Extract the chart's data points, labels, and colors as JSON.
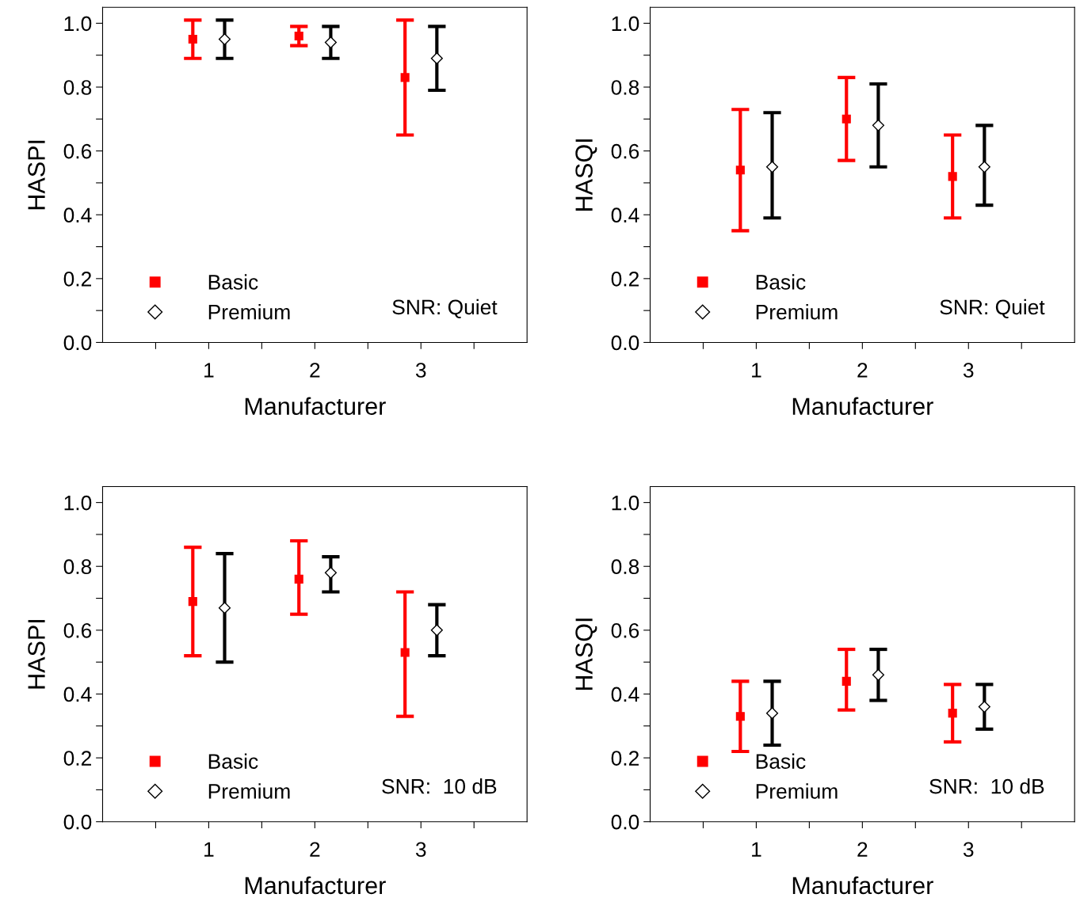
{
  "chart_data": [
    {
      "type": "scatter",
      "xlabel": "Manufacturer",
      "ylabel": "HASPI",
      "xlim": [
        0,
        4
      ],
      "ylim": [
        0,
        1.05
      ],
      "xticks": [
        {
          "value": 0.5,
          "label": null
        },
        1,
        {
          "value": 1.5,
          "label": null
        },
        2,
        {
          "value": 2.5,
          "label": null
        },
        3,
        {
          "value": 3.5,
          "label": null
        }
      ],
      "yticks": [
        {
          "value": 0,
          "label": "0.0"
        },
        {
          "value": 0.1,
          "label": null
        },
        {
          "value": 0.2,
          "label": "0.2"
        },
        {
          "value": 0.3,
          "label": null
        },
        {
          "value": 0.4,
          "label": "0.4"
        },
        {
          "value": 0.5,
          "label": null
        },
        {
          "value": 0.6,
          "label": "0.6"
        },
        {
          "value": 0.7,
          "label": null
        },
        {
          "value": 0.8,
          "label": "0.8"
        },
        {
          "value": 0.9,
          "label": null
        },
        {
          "value": 1.0,
          "label": "1.0"
        }
      ],
      "grid": false,
      "legend": "bottom left",
      "annotations": [
        "SNR: Quiet"
      ],
      "series": [
        {
          "name": "Basic",
          "color": "#ff0000",
          "marker": "square",
          "x": [
            0.85,
            1.85,
            2.85
          ],
          "values": [
            0.95,
            0.96,
            0.83
          ],
          "errors": [
            [
              0.89,
              1.01
            ],
            [
              0.93,
              0.99
            ],
            [
              0.65,
              1.01
            ]
          ]
        },
        {
          "name": "Premium",
          "color": "#000000",
          "marker": "diamond",
          "x": [
            1.15,
            2.15,
            3.15
          ],
          "values": [
            0.95,
            0.94,
            0.89
          ],
          "errors": [
            [
              0.89,
              1.01
            ],
            [
              0.89,
              0.99
            ],
            [
              0.79,
              0.99
            ]
          ]
        }
      ]
    },
    {
      "type": "scatter",
      "xlabel": "Manufacturer",
      "ylabel": "HASQI",
      "xlim": [
        0,
        4
      ],
      "ylim": [
        0,
        1.05
      ],
      "xticks": [
        {
          "value": 0.5,
          "label": null
        },
        1,
        {
          "value": 1.5,
          "label": null
        },
        2,
        {
          "value": 2.5,
          "label": null
        },
        3,
        {
          "value": 3.5,
          "label": null
        }
      ],
      "yticks": [
        {
          "value": 0,
          "label": "0.0"
        },
        {
          "value": 0.1,
          "label": null
        },
        {
          "value": 0.2,
          "label": "0.2"
        },
        {
          "value": 0.3,
          "label": null
        },
        {
          "value": 0.4,
          "label": "0.4"
        },
        {
          "value": 0.5,
          "label": null
        },
        {
          "value": 0.6,
          "label": "0.6"
        },
        {
          "value": 0.7,
          "label": null
        },
        {
          "value": 0.8,
          "label": "0.8"
        },
        {
          "value": 0.9,
          "label": null
        },
        {
          "value": 1.0,
          "label": "1.0"
        }
      ],
      "grid": false,
      "legend": "bottom left",
      "annotations": [
        "SNR: Quiet"
      ],
      "series": [
        {
          "name": "Basic",
          "color": "#ff0000",
          "marker": "square",
          "x": [
            0.85,
            1.85,
            2.85
          ],
          "values": [
            0.54,
            0.7,
            0.52
          ],
          "errors": [
            [
              0.35,
              0.73
            ],
            [
              0.57,
              0.83
            ],
            [
              0.39,
              0.65
            ]
          ]
        },
        {
          "name": "Premium",
          "color": "#000000",
          "marker": "diamond",
          "x": [
            1.15,
            2.15,
            3.15
          ],
          "values": [
            0.55,
            0.68,
            0.55
          ],
          "errors": [
            [
              0.39,
              0.72
            ],
            [
              0.55,
              0.81
            ],
            [
              0.43,
              0.68
            ]
          ]
        }
      ]
    },
    {
      "type": "scatter",
      "xlabel": "Manufacturer",
      "ylabel": "HASPI",
      "xlim": [
        0,
        4
      ],
      "ylim": [
        0,
        1.05
      ],
      "xticks": [
        {
          "value": 0.5,
          "label": null
        },
        1,
        {
          "value": 1.5,
          "label": null
        },
        2,
        {
          "value": 2.5,
          "label": null
        },
        3,
        {
          "value": 3.5,
          "label": null
        }
      ],
      "yticks": [
        {
          "value": 0,
          "label": "0.0"
        },
        {
          "value": 0.1,
          "label": null
        },
        {
          "value": 0.2,
          "label": "0.2"
        },
        {
          "value": 0.3,
          "label": null
        },
        {
          "value": 0.4,
          "label": "0.4"
        },
        {
          "value": 0.5,
          "label": null
        },
        {
          "value": 0.6,
          "label": "0.6"
        },
        {
          "value": 0.7,
          "label": null
        },
        {
          "value": 0.8,
          "label": "0.8"
        },
        {
          "value": 0.9,
          "label": null
        },
        {
          "value": 1.0,
          "label": "1.0"
        }
      ],
      "grid": false,
      "legend": "bottom left",
      "annotations": [
        "SNR:  10 dB"
      ],
      "series": [
        {
          "name": "Basic",
          "color": "#ff0000",
          "marker": "square",
          "x": [
            0.85,
            1.85,
            2.85
          ],
          "values": [
            0.69,
            0.76,
            0.53
          ],
          "errors": [
            [
              0.52,
              0.86
            ],
            [
              0.65,
              0.88
            ],
            [
              0.33,
              0.72
            ]
          ]
        },
        {
          "name": "Premium",
          "color": "#000000",
          "marker": "diamond",
          "x": [
            1.15,
            2.15,
            3.15
          ],
          "values": [
            0.67,
            0.78,
            0.6
          ],
          "errors": [
            [
              0.5,
              0.84
            ],
            [
              0.72,
              0.83
            ],
            [
              0.52,
              0.68
            ]
          ]
        }
      ]
    },
    {
      "type": "scatter",
      "xlabel": "Manufacturer",
      "ylabel": "HASQI",
      "xlim": [
        0,
        4
      ],
      "ylim": [
        0,
        1.05
      ],
      "xticks": [
        {
          "value": 0.5,
          "label": null
        },
        1,
        {
          "value": 1.5,
          "label": null
        },
        2,
        {
          "value": 2.5,
          "label": null
        },
        3,
        {
          "value": 3.5,
          "label": null
        }
      ],
      "yticks": [
        {
          "value": 0,
          "label": "0.0"
        },
        {
          "value": 0.1,
          "label": null
        },
        {
          "value": 0.2,
          "label": "0.2"
        },
        {
          "value": 0.3,
          "label": null
        },
        {
          "value": 0.4,
          "label": "0.4"
        },
        {
          "value": 0.5,
          "label": null
        },
        {
          "value": 0.6,
          "label": "0.6"
        },
        {
          "value": 0.7,
          "label": null
        },
        {
          "value": 0.8,
          "label": "0.8"
        },
        {
          "value": 0.9,
          "label": null
        },
        {
          "value": 1.0,
          "label": "1.0"
        }
      ],
      "grid": false,
      "legend": "bottom left",
      "annotations": [
        "SNR:  10 dB"
      ],
      "series": [
        {
          "name": "Basic",
          "color": "#ff0000",
          "marker": "square",
          "x": [
            0.85,
            1.85,
            2.85
          ],
          "values": [
            0.33,
            0.44,
            0.34
          ],
          "errors": [
            [
              0.22,
              0.44
            ],
            [
              0.35,
              0.54
            ],
            [
              0.25,
              0.43
            ]
          ]
        },
        {
          "name": "Premium",
          "color": "#000000",
          "marker": "diamond",
          "x": [
            1.15,
            2.15,
            3.15
          ],
          "values": [
            0.34,
            0.46,
            0.36
          ],
          "errors": [
            [
              0.24,
              0.44
            ],
            [
              0.38,
              0.54
            ],
            [
              0.29,
              0.43
            ]
          ]
        }
      ]
    }
  ]
}
